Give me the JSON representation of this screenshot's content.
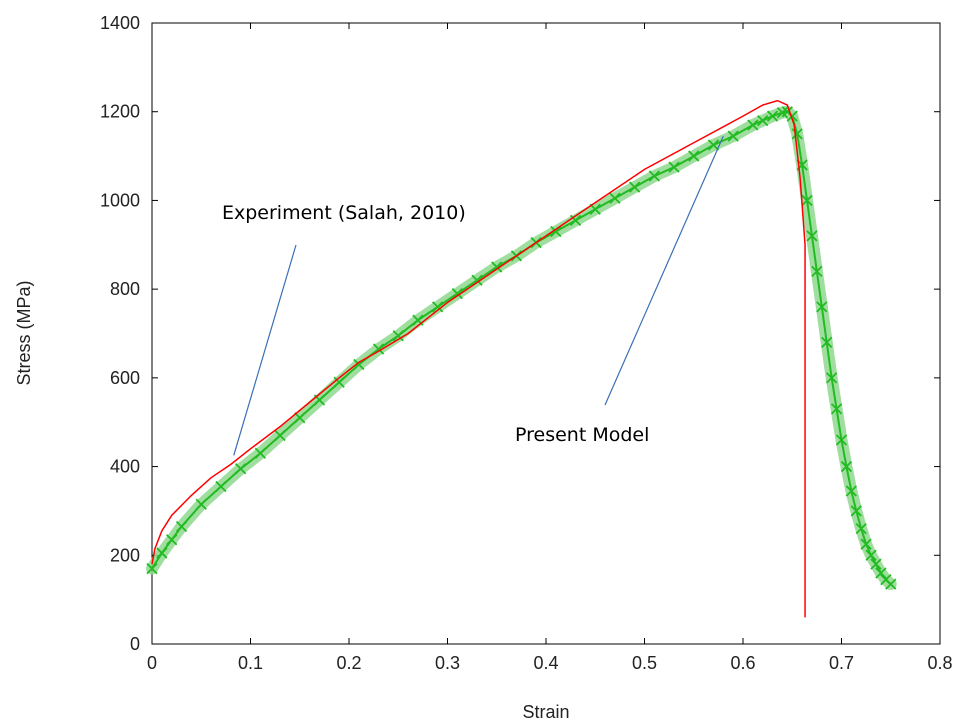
{
  "chart_data": {
    "type": "line",
    "xlabel": "Strain",
    "ylabel": "Stress (MPa)",
    "xlim": [
      0,
      0.8
    ],
    "ylim": [
      0,
      1400
    ],
    "xticks": [
      "0",
      "0.1",
      "0.2",
      "0.3",
      "0.4",
      "0.5",
      "0.6",
      "0.7",
      "0.8"
    ],
    "yticks": [
      "0",
      "200",
      "400",
      "600",
      "800",
      "1000",
      "1200",
      "1400"
    ],
    "grid": false,
    "series": [
      {
        "name": "Experiment (Salah, 2010)",
        "color": "#ff0000",
        "marker": "none",
        "x": [
          0,
          0.003,
          0.01,
          0.02,
          0.04,
          0.06,
          0.08,
          0.1,
          0.13,
          0.16,
          0.19,
          0.21,
          0.23,
          0.26,
          0.3,
          0.35,
          0.4,
          0.45,
          0.5,
          0.55,
          0.6,
          0.62,
          0.635,
          0.645,
          0.652,
          0.658,
          0.663,
          0.663
        ],
        "y": [
          180,
          215,
          255,
          290,
          335,
          375,
          405,
          440,
          490,
          545,
          600,
          635,
          660,
          700,
          770,
          845,
          920,
          995,
          1070,
          1130,
          1190,
          1215,
          1225,
          1215,
          1170,
          1050,
          900,
          60
        ]
      },
      {
        "name": "Present Model",
        "color": "#22bb22",
        "marker": "x",
        "x": [
          0,
          0.01,
          0.02,
          0.03,
          0.05,
          0.07,
          0.09,
          0.11,
          0.13,
          0.15,
          0.17,
          0.19,
          0.21,
          0.23,
          0.25,
          0.27,
          0.29,
          0.31,
          0.33,
          0.35,
          0.37,
          0.39,
          0.41,
          0.43,
          0.45,
          0.47,
          0.49,
          0.51,
          0.53,
          0.55,
          0.57,
          0.59,
          0.61,
          0.62,
          0.63,
          0.64,
          0.645,
          0.65,
          0.655,
          0.66,
          0.665,
          0.67,
          0.675,
          0.68,
          0.685,
          0.69,
          0.695,
          0.7,
          0.705,
          0.71,
          0.715,
          0.72,
          0.725,
          0.73,
          0.735,
          0.74,
          0.745,
          0.75
        ],
        "y": [
          170,
          205,
          235,
          265,
          315,
          355,
          395,
          430,
          470,
          510,
          550,
          590,
          630,
          665,
          695,
          730,
          760,
          790,
          820,
          850,
          875,
          905,
          930,
          955,
          980,
          1005,
          1030,
          1055,
          1075,
          1100,
          1125,
          1145,
          1170,
          1180,
          1190,
          1198,
          1200,
          1190,
          1150,
          1080,
          1000,
          920,
          840,
          760,
          680,
          600,
          530,
          460,
          400,
          345,
          300,
          260,
          225,
          200,
          180,
          160,
          145,
          135
        ]
      }
    ],
    "annotations": [
      {
        "text": "Experiment (Salah, 2010)",
        "points_to": [
          0.083,
          425
        ]
      },
      {
        "text": "Present Model",
        "points_to": [
          0.58,
          1145
        ]
      }
    ]
  }
}
